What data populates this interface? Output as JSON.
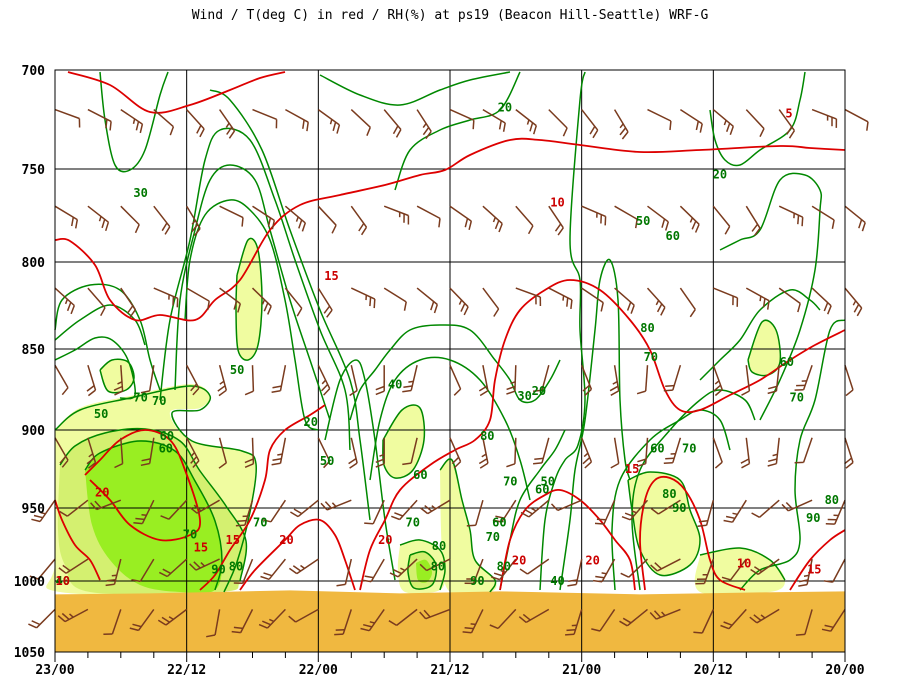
{
  "chart_data": {
    "type": "contour",
    "title": "Wind / T(deg C) in red / RH(%) at ps19 (Beacon Hill-Seattle)  WRF-G",
    "xlabel": "",
    "ylabel": "",
    "y_axis": {
      "scale": "pressure",
      "unit": "",
      "range": [
        700,
        1050
      ],
      "ticks": [
        "700",
        "750",
        "800",
        "850",
        "900",
        "950",
        "1000",
        "1050"
      ],
      "inverted": true
    },
    "x_axis": {
      "range_hours": [
        0,
        72
      ],
      "direction": "reversed",
      "ticks": [
        "23/00",
        "22/12",
        "22/00",
        "21/12",
        "21/00",
        "20/12",
        "20/00"
      ]
    },
    "grid": true,
    "series": [
      {
        "name": "T(deg C)",
        "kind": "isotherm",
        "color": "#dd0000",
        "levels": [
          "5",
          "10",
          "15",
          "20"
        ]
      },
      {
        "name": "RH(%)",
        "kind": "isohume",
        "color": "#007700",
        "levels": [
          "20",
          "30",
          "40",
          "50",
          "60",
          "70",
          "80",
          "90"
        ]
      },
      {
        "name": "Wind",
        "kind": "wind barbs",
        "color": "#7a3b1e"
      }
    ],
    "rh_fill": {
      "70-80": "#f0fca0",
      "80-90": "#d4f070",
      "90+": "#99ee22"
    },
    "temp_labels": [
      {
        "text": "5",
        "hour": 66.9,
        "p": 722
      },
      {
        "text": "10",
        "hour": 45.8,
        "p": 768
      },
      {
        "text": "15",
        "hour": 25.2,
        "p": 808
      },
      {
        "text": "10",
        "hour": 62.8,
        "p": 988
      },
      {
        "text": "15",
        "hour": 52.6,
        "p": 925
      },
      {
        "text": "15",
        "hour": 69.2,
        "p": 992
      },
      {
        "text": "20",
        "hour": 49.0,
        "p": 986
      },
      {
        "text": "20",
        "hour": 42.3,
        "p": 986
      },
      {
        "text": "20",
        "hour": 30.1,
        "p": 972
      },
      {
        "text": "20",
        "hour": 21.1,
        "p": 972
      },
      {
        "text": "15",
        "hour": 16.2,
        "p": 972
      },
      {
        "text": "15",
        "hour": 13.3,
        "p": 977
      },
      {
        "text": "20",
        "hour": 4.3,
        "p": 940
      },
      {
        "text": "10",
        "hour": 0.7,
        "p": 1000
      }
    ],
    "rh_labels": [
      {
        "text": "20",
        "hour": 41.0,
        "p": 719
      },
      {
        "text": "20",
        "hour": 60.6,
        "p": 753
      },
      {
        "text": "30",
        "hour": 7.8,
        "p": 763
      },
      {
        "text": "50",
        "hour": 53.6,
        "p": 778
      },
      {
        "text": "60",
        "hour": 56.3,
        "p": 786
      },
      {
        "text": "80",
        "hour": 54.0,
        "p": 838
      },
      {
        "text": "70",
        "hour": 54.3,
        "p": 855
      },
      {
        "text": "60",
        "hour": 66.7,
        "p": 858
      },
      {
        "text": "70",
        "hour": 67.6,
        "p": 880
      },
      {
        "text": "20",
        "hour": 44.1,
        "p": 876
      },
      {
        "text": "30",
        "hour": 42.8,
        "p": 879
      },
      {
        "text": "40",
        "hour": 31.0,
        "p": 872
      },
      {
        "text": "50",
        "hour": 16.6,
        "p": 863
      },
      {
        "text": "20",
        "hour": 23.3,
        "p": 895
      },
      {
        "text": "70",
        "hour": 57.8,
        "p": 912
      },
      {
        "text": "60",
        "hour": 54.9,
        "p": 912
      },
      {
        "text": "80",
        "hour": 39.4,
        "p": 904
      },
      {
        "text": "60",
        "hour": 10.2,
        "p": 904
      },
      {
        "text": "70",
        "hour": 7.8,
        "p": 880
      },
      {
        "text": "60",
        "hour": 33.3,
        "p": 929
      },
      {
        "text": "50",
        "hour": 24.8,
        "p": 920
      },
      {
        "text": "50",
        "hour": 44.9,
        "p": 933
      },
      {
        "text": "60",
        "hour": 44.4,
        "p": 938
      },
      {
        "text": "70",
        "hour": 41.5,
        "p": 933
      },
      {
        "text": "80",
        "hour": 56.0,
        "p": 941
      },
      {
        "text": "90",
        "hour": 56.9,
        "p": 950
      },
      {
        "text": "80",
        "hour": 70.8,
        "p": 945
      },
      {
        "text": "90",
        "hour": 69.1,
        "p": 957
      },
      {
        "text": "60",
        "hour": 40.5,
        "p": 960
      },
      {
        "text": "70",
        "hour": 39.9,
        "p": 970
      },
      {
        "text": "70",
        "hour": 32.6,
        "p": 960
      },
      {
        "text": "80",
        "hour": 35.0,
        "p": 976
      },
      {
        "text": "70",
        "hour": 18.7,
        "p": 960
      },
      {
        "text": "70",
        "hour": 12.3,
        "p": 968
      },
      {
        "text": "80",
        "hour": 16.5,
        "p": 990
      },
      {
        "text": "90",
        "hour": 14.9,
        "p": 992
      },
      {
        "text": "80",
        "hour": 40.9,
        "p": 990
      },
      {
        "text": "90",
        "hour": 38.5,
        "p": 1000
      },
      {
        "text": "80",
        "hour": 34.9,
        "p": 990
      },
      {
        "text": "60",
        "hour": 10.1,
        "p": 912
      },
      {
        "text": "70",
        "hour": 9.5,
        "p": 882
      },
      {
        "text": "40",
        "hour": 45.8,
        "p": 1000
      },
      {
        "text": "40",
        "hour": 0.7,
        "p": 1000
      },
      {
        "text": "50",
        "hour": 4.2,
        "p": 890
      }
    ],
    "ground": {
      "pressure_top": 1008,
      "color": "#f0b840"
    }
  }
}
